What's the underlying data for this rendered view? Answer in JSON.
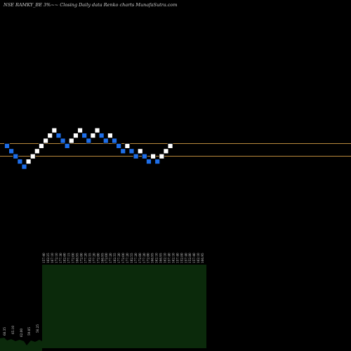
{
  "title": "NSE RAMKY_BE 3%~~ Closing Daily data Renko charts MunafaSutra.com",
  "chart_data": {
    "type": "renko",
    "title": "NSE RAMKY_BE 3%~~ Closing Daily data Renko charts MunafaSutra.com",
    "brick_size_label": "3%",
    "bricks": [
      {
        "dir": "down",
        "level": 4
      },
      {
        "dir": "down",
        "level": 3
      },
      {
        "dir": "down",
        "level": 2
      },
      {
        "dir": "down",
        "level": 1
      },
      {
        "dir": "down",
        "level": 0
      },
      {
        "dir": "up",
        "level": 1
      },
      {
        "dir": "up",
        "level": 2
      },
      {
        "dir": "up",
        "level": 3
      },
      {
        "dir": "up",
        "level": 4
      },
      {
        "dir": "up",
        "level": 5
      },
      {
        "dir": "up",
        "level": 6
      },
      {
        "dir": "up",
        "level": 7
      },
      {
        "dir": "down",
        "level": 6
      },
      {
        "dir": "down",
        "level": 5
      },
      {
        "dir": "down",
        "level": 4
      },
      {
        "dir": "up",
        "level": 5
      },
      {
        "dir": "up",
        "level": 6
      },
      {
        "dir": "up",
        "level": 7
      },
      {
        "dir": "down",
        "level": 6
      },
      {
        "dir": "down",
        "level": 5
      },
      {
        "dir": "up",
        "level": 6
      },
      {
        "dir": "up",
        "level": 7
      },
      {
        "dir": "down",
        "level": 6
      },
      {
        "dir": "down",
        "level": 5
      },
      {
        "dir": "up",
        "level": 6
      },
      {
        "dir": "down",
        "level": 5
      },
      {
        "dir": "down",
        "level": 4
      },
      {
        "dir": "down",
        "level": 3
      },
      {
        "dir": "up",
        "level": 4
      },
      {
        "dir": "down",
        "level": 3
      },
      {
        "dir": "down",
        "level": 2
      },
      {
        "dir": "up",
        "level": 3
      },
      {
        "dir": "down",
        "level": 2
      },
      {
        "dir": "down",
        "level": 1
      },
      {
        "dir": "up",
        "level": 2
      },
      {
        "dir": "down",
        "level": 1
      },
      {
        "dir": "up",
        "level": 2
      },
      {
        "dir": "up",
        "level": 3
      },
      {
        "dir": "up",
        "level": 4
      }
    ],
    "reference_lines": [
      "upper",
      "lower"
    ],
    "volume_panel": {
      "left_values": [
        "68.35",
        "65.10",
        "62.00",
        "59.05",
        "56.25"
      ],
      "right_labels": [
        "157.40",
        "162.25",
        "167.10",
        "172.10",
        "177.30",
        "182.60",
        "177.15",
        "172.00",
        "166.95",
        "172.00",
        "177.20",
        "182.55",
        "177.20",
        "172.00",
        "166.95",
        "172.00",
        "177.20",
        "182.55",
        "177.20",
        "172.00",
        "177.20",
        "182.55",
        "177.20",
        "172.00",
        "177.20",
        "172.00",
        "166.95",
        "162.10",
        "166.95",
        "162.10",
        "157.40",
        "162.10",
        "157.40",
        "152.80",
        "157.40",
        "152.80",
        "157.40",
        "162.10",
        "166.95"
      ]
    },
    "colors": {
      "background": "#000000",
      "up_brick": "#ffffff",
      "down_brick": "#1e6ee8",
      "reference_line": "#b8893c",
      "volume_fill": "#0b2a0b",
      "text": "#cfcfcf"
    }
  }
}
